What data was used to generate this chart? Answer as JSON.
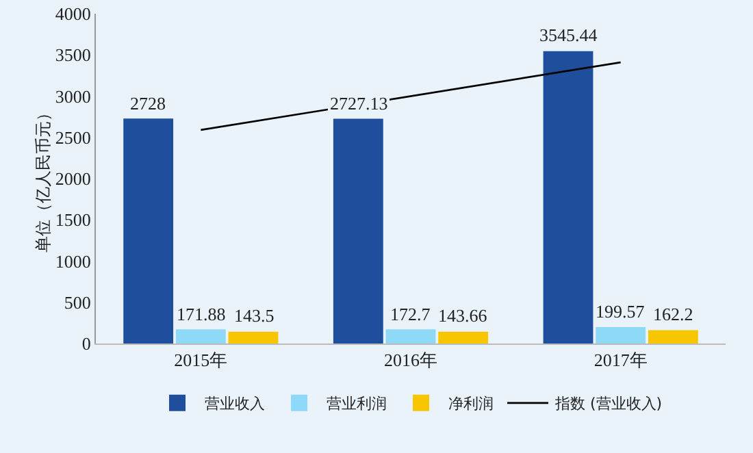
{
  "chart_data": {
    "type": "bar",
    "categories": [
      "2015年",
      "2016年",
      "2017年"
    ],
    "ylabel": "单位（亿人民币元）",
    "ylim": [
      0,
      4000
    ],
    "yticks": [
      0,
      500,
      1000,
      1500,
      2000,
      2500,
      3000,
      3500,
      4000
    ],
    "grid": false,
    "legend": "bottom",
    "series": [
      {
        "name": "营业收入",
        "color": "#1f4e9c",
        "values": [
          2728,
          2727.13,
          3545.44
        ],
        "value_labels": [
          "2728",
          "2727.13",
          "3545.44"
        ]
      },
      {
        "name": "营业利润",
        "color": "#8ed8f8",
        "values": [
          171.88,
          172.7,
          199.57
        ],
        "value_labels": [
          "171.88",
          "172.7",
          "199.57"
        ]
      },
      {
        "name": "净利润",
        "color": "#f7c600",
        "values": [
          143.5,
          143.66,
          162.2
        ],
        "value_labels": [
          "143.5",
          "143.66",
          "162.2"
        ]
      },
      {
        "name": "指数 (营业收入)",
        "type": "line",
        "color": "#000000",
        "x": [
          "2015年",
          "2017年"
        ],
        "values": [
          2590,
          3410
        ]
      }
    ]
  }
}
